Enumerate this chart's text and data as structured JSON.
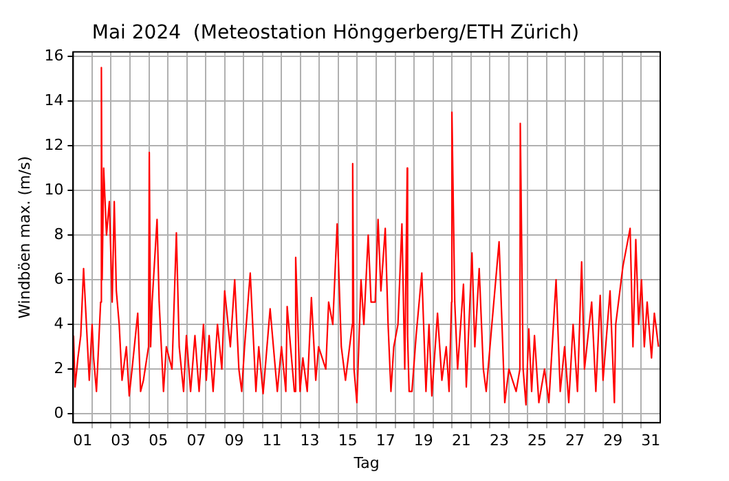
{
  "chart_data": {
    "type": "line",
    "title": "Mai 2024  (Meteostation Hönggerberg/ETH Zürich)",
    "xlabel": "Tag",
    "ylabel": "Windböen max. (m/s)",
    "x": [
      1.02,
      1.1,
      1.25,
      1.4,
      1.55,
      1.7,
      1.85,
      2.0,
      2.08,
      2.23,
      2.45,
      2.49,
      2.53,
      2.61,
      2.76,
      2.91,
      3.06,
      3.17,
      3.28,
      3.43,
      3.58,
      3.81,
      3.96,
      4.11,
      4.41,
      4.56,
      4.71,
      4.98,
      5.02,
      5.09,
      5.17,
      5.43,
      5.54,
      5.77,
      5.92,
      6.22,
      6.45,
      6.6,
      6.83,
      6.98,
      7.2,
      7.43,
      7.65,
      7.88,
      8.03,
      8.18,
      8.39,
      8.62,
      8.85,
      9.0,
      9.3,
      9.53,
      9.75,
      9.9,
      10.05,
      10.35,
      10.65,
      10.8,
      11.03,
      11.4,
      11.78,
      12.0,
      12.23,
      12.3,
      12.68,
      12.75,
      12.98,
      13.13,
      13.36,
      13.58,
      13.81,
      13.96,
      14.34,
      14.49,
      14.71,
      14.94,
      15.16,
      15.38,
      15.74,
      15.76,
      15.83,
      15.98,
      16.2,
      16.35,
      16.58,
      16.73,
      16.95,
      17.1,
      17.25,
      17.48,
      17.63,
      17.78,
      17.93,
      18.15,
      18.36,
      18.51,
      18.64,
      18.66,
      18.74,
      18.89,
      19.11,
      19.41,
      19.63,
      19.79,
      19.94,
      20.24,
      20.47,
      20.7,
      20.85,
      20.98,
      21.0,
      21.15,
      21.3,
      21.61,
      21.76,
      22.06,
      22.21,
      22.44,
      22.66,
      22.81,
      23.11,
      23.49,
      23.79,
      24.01,
      24.39,
      24.59,
      24.61,
      24.76,
      24.91,
      25.06,
      25.21,
      25.36,
      25.59,
      25.89,
      26.12,
      26.5,
      26.72,
      26.95,
      27.17,
      27.4,
      27.63,
      27.85,
      28.0,
      28.38,
      28.6,
      28.83,
      28.98,
      29.35,
      29.58,
      29.65,
      30.03,
      30.41,
      30.56,
      30.71,
      30.86,
      31.01,
      31.16,
      31.31,
      31.54,
      31.69,
      31.91
    ],
    "series": [
      {
        "color": "#ff0000",
        "values": [
          3.5,
          1.2,
          2.5,
          3.5,
          6.5,
          4,
          1.5,
          4,
          2.5,
          1.0,
          5,
          15.5,
          6,
          11,
          8,
          9.5,
          5,
          9.5,
          5.5,
          4,
          1.5,
          3,
          0.8,
          2,
          4.5,
          1.0,
          1.5,
          3,
          11.7,
          3,
          5,
          8.7,
          5,
          1.0,
          3,
          2,
          8.1,
          3,
          1,
          3.5,
          1.0,
          3.5,
          1.0,
          4,
          1.5,
          3.5,
          1.0,
          4,
          2,
          5.5,
          3,
          6,
          2,
          1,
          3,
          6.3,
          1,
          3,
          0.9,
          4.7,
          1.0,
          3,
          1.0,
          4.8,
          1,
          7,
          1.0,
          2.5,
          1.0,
          5.2,
          1.5,
          3,
          2,
          5,
          4,
          8.5,
          3,
          1.5,
          4,
          11.2,
          2,
          0.5,
          6,
          4,
          8,
          5,
          5,
          8.7,
          5.5,
          8.3,
          4,
          1.0,
          3,
          4,
          8.5,
          2,
          11,
          3.5,
          1.0,
          1.0,
          3.5,
          6.3,
          1,
          4,
          0.8,
          4.5,
          1.5,
          3,
          1.0,
          5,
          13.5,
          5,
          2,
          5.8,
          1.2,
          7.2,
          3,
          6.5,
          2,
          1,
          4,
          7.7,
          0.5,
          2,
          1,
          2,
          13,
          2,
          0.4,
          3.8,
          1,
          3.5,
          0.5,
          2,
          0.5,
          6,
          1,
          3,
          0.5,
          4,
          1.0,
          6.8,
          2,
          5,
          1,
          5.3,
          1.5,
          5.5,
          0.5,
          4,
          6.6,
          8.3,
          3,
          7.8,
          4,
          6,
          3,
          5,
          2.5,
          4.5,
          3
        ]
      }
    ],
    "xlim": [
      1,
      32
    ],
    "xticks": [
      {
        "value": 1.5,
        "label": "01"
      },
      {
        "value": 2,
        "label": null
      },
      {
        "value": 3,
        "label": null
      },
      {
        "value": 3.5,
        "label": "03"
      },
      {
        "value": 4,
        "label": null
      },
      {
        "value": 5,
        "label": null
      },
      {
        "value": 5.5,
        "label": "05"
      },
      {
        "value": 6,
        "label": null
      },
      {
        "value": 7,
        "label": null
      },
      {
        "value": 7.5,
        "label": "07"
      },
      {
        "value": 8,
        "label": null
      },
      {
        "value": 9,
        "label": null
      },
      {
        "value": 9.5,
        "label": "09"
      },
      {
        "value": 10,
        "label": null
      },
      {
        "value": 11,
        "label": null
      },
      {
        "value": 11.5,
        "label": "11"
      },
      {
        "value": 12,
        "label": null
      },
      {
        "value": 13,
        "label": null
      },
      {
        "value": 13.5,
        "label": "13"
      },
      {
        "value": 14,
        "label": null
      },
      {
        "value": 15,
        "label": null
      },
      {
        "value": 15.5,
        "label": "15"
      },
      {
        "value": 16,
        "label": null
      },
      {
        "value": 17,
        "label": null
      },
      {
        "value": 17.5,
        "label": "17"
      },
      {
        "value": 18,
        "label": null
      },
      {
        "value": 19,
        "label": null
      },
      {
        "value": 19.5,
        "label": "19"
      },
      {
        "value": 20,
        "label": null
      },
      {
        "value": 21,
        "label": null
      },
      {
        "value": 21.5,
        "label": "21"
      },
      {
        "value": 22,
        "label": null
      },
      {
        "value": 23,
        "label": null
      },
      {
        "value": 23.5,
        "label": "23"
      },
      {
        "value": 24,
        "label": null
      },
      {
        "value": 25,
        "label": null
      },
      {
        "value": 25.5,
        "label": "25"
      },
      {
        "value": 26,
        "label": null
      },
      {
        "value": 27,
        "label": null
      },
      {
        "value": 27.5,
        "label": "27"
      },
      {
        "value": 28,
        "label": null
      },
      {
        "value": 29,
        "label": null
      },
      {
        "value": 29.5,
        "label": "29"
      },
      {
        "value": 30,
        "label": null
      },
      {
        "value": 31,
        "label": null
      },
      {
        "value": 31.5,
        "label": "31"
      }
    ],
    "ylim": [
      -0.4,
      16.2
    ],
    "yticks": [
      0,
      2,
      4,
      6,
      8,
      10,
      12,
      14,
      16
    ],
    "grid": true,
    "marker": "none",
    "line_style": "solid"
  }
}
